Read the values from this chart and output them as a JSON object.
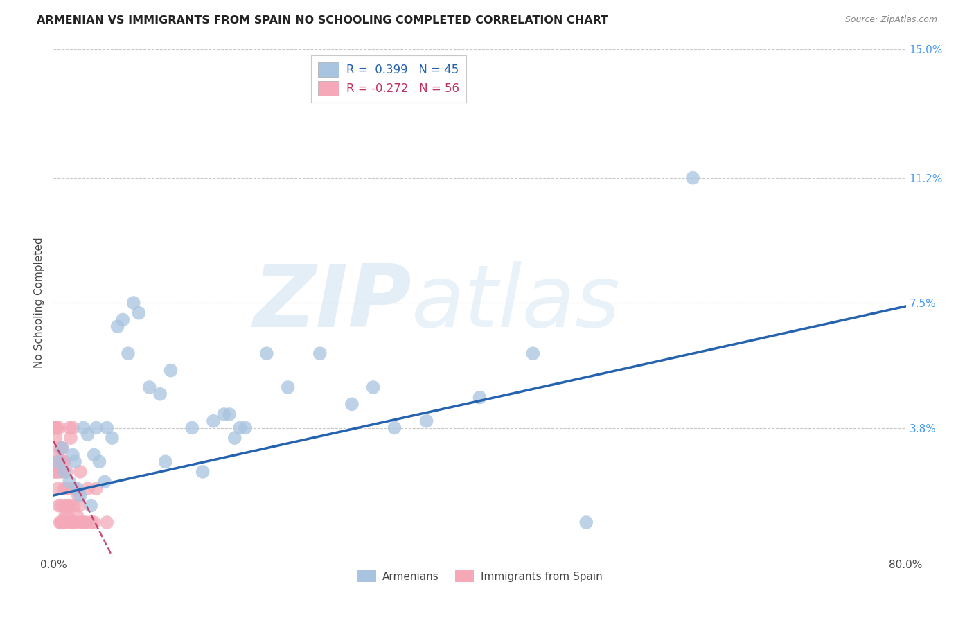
{
  "title": "ARMENIAN VS IMMIGRANTS FROM SPAIN NO SCHOOLING COMPLETED CORRELATION CHART",
  "source": "Source: ZipAtlas.com",
  "ylabel": "No Schooling Completed",
  "xlim": [
    0.0,
    0.8
  ],
  "ylim": [
    0.0,
    0.15
  ],
  "yticks": [
    0.038,
    0.075,
    0.112,
    0.15
  ],
  "ytick_labels": [
    "3.8%",
    "7.5%",
    "11.2%",
    "15.0%"
  ],
  "xticks": [
    0.0,
    0.16,
    0.32,
    0.48,
    0.64,
    0.8
  ],
  "xtick_labels": [
    "0.0%",
    "",
    "",
    "",
    "",
    "80.0%"
  ],
  "armenian_R": 0.399,
  "armenian_N": 45,
  "spain_R": -0.272,
  "spain_N": 56,
  "armenian_color": "#a8c4e0",
  "spain_color": "#f4a8b8",
  "armenian_line_color": "#2563b0",
  "spain_line_color": "#c03060",
  "background_color": "#ffffff",
  "grid_color": "#c8c8c8",
  "watermark_zip": "ZIP",
  "watermark_atlas": "atlas",
  "legend1_text": "R =  0.399   N = 45",
  "legend2_text": "R = -0.272   N = 56",
  "bottom_legend1": "Armenians",
  "bottom_legend2": "Immigrants from Spain",
  "armenian_scatter_x": [
    0.005,
    0.008,
    0.01,
    0.015,
    0.018,
    0.02,
    0.022,
    0.025,
    0.028,
    0.032,
    0.035,
    0.038,
    0.04,
    0.043,
    0.048,
    0.05,
    0.055,
    0.06,
    0.065,
    0.07,
    0.075,
    0.08,
    0.09,
    0.1,
    0.105,
    0.11,
    0.13,
    0.14,
    0.15,
    0.16,
    0.165,
    0.17,
    0.175,
    0.18,
    0.2,
    0.22,
    0.25,
    0.28,
    0.3,
    0.32,
    0.35,
    0.4,
    0.45,
    0.5,
    0.6
  ],
  "armenian_scatter_y": [
    0.028,
    0.032,
    0.025,
    0.022,
    0.03,
    0.028,
    0.02,
    0.018,
    0.038,
    0.036,
    0.015,
    0.03,
    0.038,
    0.028,
    0.022,
    0.038,
    0.035,
    0.068,
    0.07,
    0.06,
    0.075,
    0.072,
    0.05,
    0.048,
    0.028,
    0.055,
    0.038,
    0.025,
    0.04,
    0.042,
    0.042,
    0.035,
    0.038,
    0.038,
    0.06,
    0.05,
    0.06,
    0.045,
    0.05,
    0.038,
    0.04,
    0.047,
    0.06,
    0.01,
    0.112
  ],
  "spain_scatter_x": [
    0.0,
    0.001,
    0.001,
    0.002,
    0.002,
    0.003,
    0.003,
    0.003,
    0.004,
    0.004,
    0.005,
    0.005,
    0.005,
    0.006,
    0.006,
    0.006,
    0.007,
    0.007,
    0.007,
    0.008,
    0.008,
    0.008,
    0.009,
    0.009,
    0.01,
    0.01,
    0.01,
    0.011,
    0.011,
    0.012,
    0.012,
    0.013,
    0.013,
    0.014,
    0.015,
    0.015,
    0.016,
    0.016,
    0.017,
    0.018,
    0.018,
    0.019,
    0.02,
    0.021,
    0.022,
    0.023,
    0.024,
    0.025,
    0.026,
    0.028,
    0.03,
    0.032,
    0.035,
    0.038,
    0.04,
    0.05
  ],
  "spain_scatter_y": [
    0.038,
    0.038,
    0.025,
    0.035,
    0.025,
    0.038,
    0.03,
    0.025,
    0.028,
    0.02,
    0.038,
    0.025,
    0.015,
    0.032,
    0.028,
    0.01,
    0.028,
    0.015,
    0.01,
    0.032,
    0.025,
    0.01,
    0.028,
    0.01,
    0.028,
    0.02,
    0.01,
    0.015,
    0.012,
    0.025,
    0.02,
    0.015,
    0.012,
    0.02,
    0.038,
    0.015,
    0.035,
    0.01,
    0.01,
    0.038,
    0.01,
    0.015,
    0.02,
    0.01,
    0.012,
    0.018,
    0.015,
    0.025,
    0.01,
    0.01,
    0.01,
    0.02,
    0.01,
    0.01,
    0.02,
    0.01
  ],
  "armenian_trend_x": [
    0.0,
    0.8
  ],
  "armenian_trend_y": [
    0.018,
    0.074
  ],
  "spain_trend_x": [
    0.0,
    0.055
  ],
  "spain_trend_y": [
    0.034,
    0.0
  ]
}
